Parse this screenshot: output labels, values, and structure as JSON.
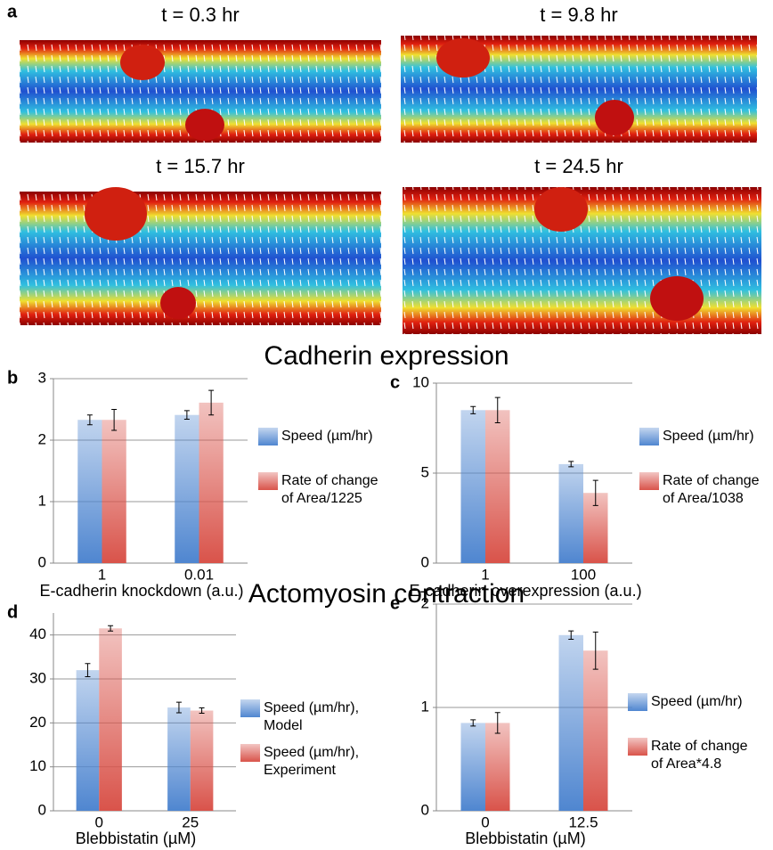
{
  "figure": {
    "panel_labels": [
      "a"
    ],
    "heatmap_titles": [
      "t = 0.3 hr",
      "t = 9.8 hr",
      "t = 15.7 hr",
      "t = 24.5 hr"
    ],
    "section_headings": [
      "Cadherin expression",
      "Actomyosin contraction"
    ]
  },
  "chart_data": [
    {
      "type": "bar",
      "panel": "b",
      "x_label": "E-cadherin knockdown (a.u.)",
      "categories": [
        "1",
        "0.01"
      ],
      "series": [
        {
          "name": "Speed (µm/hr)",
          "color": "#4f86d0",
          "values": [
            2.33,
            2.41
          ],
          "errors": [
            0.08,
            0.07
          ]
        },
        {
          "name": "Rate of change of Area/1225",
          "color": "#d9534a",
          "values": [
            2.33,
            2.61
          ],
          "errors": [
            0.17,
            0.2
          ]
        }
      ],
      "ylim": [
        0,
        3
      ],
      "yticks": [
        0,
        1,
        2,
        3
      ],
      "grid": true
    },
    {
      "type": "bar",
      "panel": "c",
      "x_label": "E-cadherin overexpression (a.u.)",
      "categories": [
        "1",
        "100"
      ],
      "series": [
        {
          "name": "Speed (µm/hr)",
          "color": "#4f86d0",
          "values": [
            8.5,
            5.5
          ],
          "errors": [
            0.2,
            0.15
          ]
        },
        {
          "name": "Rate of change of Area/1038",
          "color": "#d9534a",
          "values": [
            8.5,
            3.9
          ],
          "errors": [
            0.7,
            0.7
          ]
        }
      ],
      "ylim": [
        0,
        10
      ],
      "yticks": [
        0,
        5,
        10
      ],
      "grid": true
    },
    {
      "type": "bar",
      "panel": "d",
      "x_label": "Blebbistatin (µM)",
      "categories": [
        "0",
        "25"
      ],
      "series": [
        {
          "name": "Speed (µm/hr), Model",
          "color": "#4f86d0",
          "values": [
            32,
            23.5
          ],
          "errors": [
            1.5,
            1.2
          ]
        },
        {
          "name": "Speed (µm/hr), Experiment",
          "color": "#d9534a",
          "values": [
            41.5,
            22.8
          ],
          "errors": [
            0.6,
            0.6
          ]
        }
      ],
      "ylim": [
        0,
        45
      ],
      "yticks": [
        0,
        10,
        20,
        30,
        40
      ],
      "grid": true
    },
    {
      "type": "bar",
      "panel": "e",
      "x_label": "Blebbistatin (µM)",
      "categories": [
        "0",
        "12.5"
      ],
      "series": [
        {
          "name": "Speed (µm/hr)",
          "color": "#4f86d0",
          "values": [
            0.85,
            1.7
          ],
          "errors": [
            0.03,
            0.04
          ]
        },
        {
          "name": "Rate of change of Area*4.8",
          "color": "#d9534a",
          "values": [
            0.85,
            1.55
          ],
          "errors": [
            0.1,
            0.18
          ]
        }
      ],
      "ylim": [
        0,
        2
      ],
      "yticks": [
        0,
        1,
        2
      ],
      "grid": true
    }
  ]
}
